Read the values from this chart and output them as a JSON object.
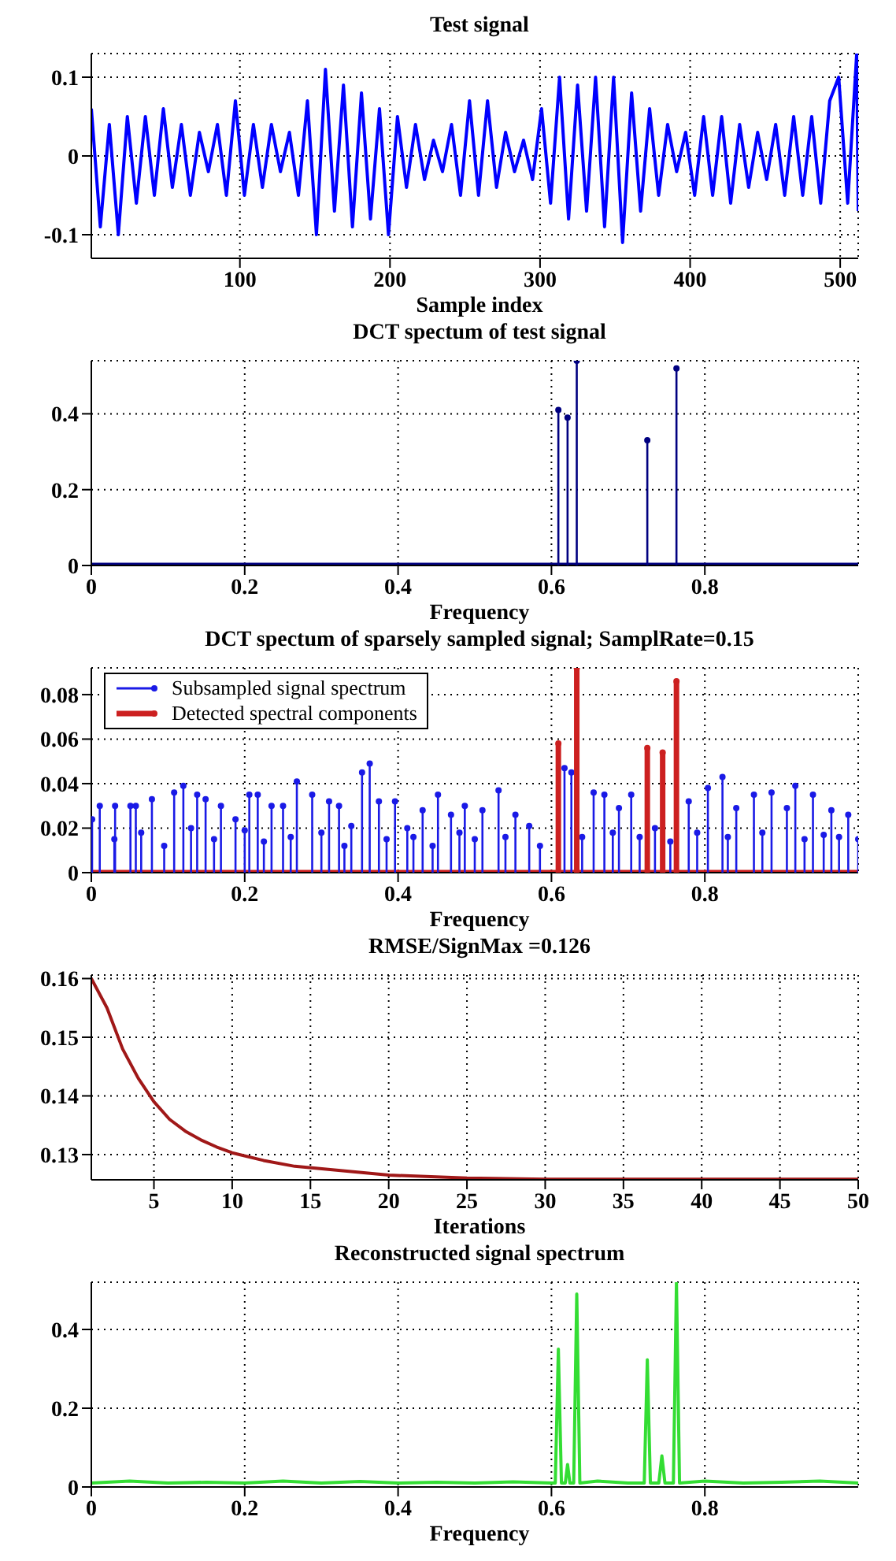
{
  "chart_data": [
    {
      "type": "line",
      "title": "Test signal",
      "xlabel": "Sample index",
      "color": "#0000ff",
      "xlim": [
        1,
        512
      ],
      "xticks": [
        100,
        200,
        300,
        400,
        500
      ],
      "ylim": [
        -0.13,
        0.13
      ],
      "yticks": [
        -0.1,
        0,
        0.1
      ],
      "grid": true,
      "x": [
        1,
        7,
        13,
        19,
        25,
        31,
        37,
        43,
        49,
        55,
        61,
        67,
        73,
        79,
        85,
        91,
        97,
        103,
        109,
        115,
        121,
        127,
        133,
        139,
        145,
        151,
        157,
        163,
        169,
        175,
        181,
        187,
        193,
        199,
        205,
        211,
        217,
        223,
        229,
        235,
        241,
        247,
        253,
        259,
        265,
        271,
        277,
        283,
        289,
        295,
        301,
        307,
        313,
        319,
        325,
        331,
        337,
        343,
        349,
        355,
        361,
        367,
        373,
        379,
        385,
        391,
        397,
        403,
        409,
        415,
        421,
        427,
        433,
        439,
        445,
        451,
        457,
        463,
        469,
        475,
        481,
        487,
        493,
        499,
        505,
        511,
        512
      ],
      "values": [
        0.06,
        -0.09,
        0.04,
        -0.1,
        0.05,
        -0.06,
        0.05,
        -0.05,
        0.06,
        -0.04,
        0.04,
        -0.05,
        0.03,
        -0.02,
        0.04,
        -0.05,
        0.07,
        -0.05,
        0.04,
        -0.04,
        0.04,
        -0.02,
        0.03,
        -0.05,
        0.07,
        -0.1,
        0.11,
        -0.07,
        0.09,
        -0.09,
        0.08,
        -0.08,
        0.06,
        -0.1,
        0.05,
        -0.04,
        0.04,
        -0.03,
        0.02,
        -0.02,
        0.04,
        -0.05,
        0.07,
        -0.05,
        0.07,
        -0.04,
        0.03,
        -0.02,
        0.02,
        -0.03,
        0.06,
        -0.06,
        0.1,
        -0.08,
        0.09,
        -0.07,
        0.1,
        -0.09,
        0.1,
        -0.11,
        0.08,
        -0.07,
        0.06,
        -0.05,
        0.04,
        -0.02,
        0.03,
        -0.05,
        0.05,
        -0.05,
        0.05,
        -0.06,
        0.04,
        -0.04,
        0.03,
        -0.03,
        0.04,
        -0.05,
        0.05,
        -0.05,
        0.05,
        -0.06,
        0.07,
        0.1,
        -0.06,
        0.13,
        -0.07
      ]
    },
    {
      "type": "lollipop",
      "title": "DCT spectum of test signal",
      "xlabel": "Frequency",
      "xlim": [
        0,
        1
      ],
      "xticks": [
        0,
        0.2,
        0.4,
        0.6,
        0.8
      ],
      "ylim": [
        0,
        0.54
      ],
      "yticks": [
        0,
        0.2,
        0.4
      ],
      "grid": true,
      "marker": "circle",
      "series": [
        {
          "color": "#000080",
          "x": [
            0.609,
            0.621,
            0.633,
            0.725,
            0.763
          ],
          "values": [
            0.41,
            0.39,
            0.54,
            0.33,
            0.52
          ]
        },
        {
          "type": "line",
          "marker": "none",
          "color": "#000080",
          "x": [
            0,
            1
          ],
          "values": [
            0,
            0
          ]
        }
      ]
    },
    {
      "type": "lollipop",
      "title": "DCT spectum of sparsely sampled signal; SamplRate=0.15",
      "xlabel": "Frequency",
      "xlim": [
        0,
        1
      ],
      "xticks": [
        0,
        0.2,
        0.4,
        0.6,
        0.8
      ],
      "ylim": [
        0,
        0.092
      ],
      "yticks": [
        0,
        0.02,
        0.04,
        0.06,
        0.08
      ],
      "grid": true,
      "marker": "circle",
      "legend": "top left",
      "series": [
        {
          "name": "Subsampled signal spectrum",
          "color": "#1a1ae6",
          "x": [
            0.001,
            0.011,
            0.03,
            0.031,
            0.051,
            0.058,
            0.065,
            0.079,
            0.095,
            0.108,
            0.12,
            0.13,
            0.138,
            0.149,
            0.16,
            0.169,
            0.188,
            0.2,
            0.206,
            0.217,
            0.225,
            0.235,
            0.25,
            0.26,
            0.268,
            0.288,
            0.3,
            0.31,
            0.323,
            0.33,
            0.339,
            0.353,
            0.363,
            0.375,
            0.385,
            0.396,
            0.412,
            0.42,
            0.432,
            0.445,
            0.452,
            0.469,
            0.48,
            0.487,
            0.5,
            0.51,
            0.531,
            0.54,
            0.553,
            0.571,
            0.585,
            0.617,
            0.626,
            0.64,
            0.655,
            0.669,
            0.68,
            0.688,
            0.704,
            0.715,
            0.735,
            0.755,
            0.779,
            0.79,
            0.804,
            0.823,
            0.83,
            0.841,
            0.864,
            0.875,
            0.887,
            0.907,
            0.918,
            0.93,
            0.941,
            0.955,
            0.965,
            0.975,
            0.987,
            1.0
          ],
          "values": [
            0.024,
            0.03,
            0.015,
            0.03,
            0.03,
            0.03,
            0.018,
            0.033,
            0.012,
            0.036,
            0.039,
            0.02,
            0.035,
            0.033,
            0.015,
            0.03,
            0.024,
            0.019,
            0.035,
            0.035,
            0.014,
            0.03,
            0.03,
            0.016,
            0.041,
            0.035,
            0.018,
            0.032,
            0.03,
            0.012,
            0.021,
            0.045,
            0.049,
            0.032,
            0.015,
            0.032,
            0.02,
            0.016,
            0.028,
            0.012,
            0.035,
            0.026,
            0.018,
            0.03,
            0.015,
            0.028,
            0.037,
            0.016,
            0.026,
            0.021,
            0.012,
            0.047,
            0.045,
            0.016,
            0.036,
            0.035,
            0.018,
            0.029,
            0.035,
            0.016,
            0.02,
            0.014,
            0.032,
            0.018,
            0.038,
            0.043,
            0.016,
            0.029,
            0.035,
            0.018,
            0.036,
            0.029,
            0.039,
            0.015,
            0.035,
            0.017,
            0.028,
            0.016,
            0.026,
            0.015
          ]
        },
        {
          "name": "Detected spectral components",
          "color": "#cc2020",
          "x": [
            0.609,
            0.633,
            0.725,
            0.745,
            0.763
          ],
          "values": [
            0.058,
            0.092,
            0.056,
            0.054,
            0.086
          ]
        },
        {
          "type": "line",
          "marker": "none",
          "color": "#cc2020",
          "x": [
            0,
            1
          ],
          "values": [
            0,
            0
          ]
        }
      ]
    },
    {
      "type": "line",
      "title": "RMSE/SignMax =0.126",
      "xlabel": "Iterations",
      "color": "#a01818",
      "xlim": [
        1,
        50
      ],
      "xticks": [
        5,
        10,
        15,
        20,
        25,
        30,
        35,
        40,
        45,
        50
      ],
      "ylim": [
        0.1257,
        0.1606
      ],
      "yticks": [
        0.13,
        0.14,
        0.15,
        0.16
      ],
      "grid": true,
      "x": [
        1,
        2,
        3,
        4,
        5,
        6,
        7,
        8,
        9,
        10,
        12,
        14,
        16,
        18,
        20,
        25,
        30,
        35,
        40,
        45,
        50
      ],
      "values": [
        0.16,
        0.155,
        0.148,
        0.143,
        0.139,
        0.136,
        0.134,
        0.1325,
        0.1313,
        0.1303,
        0.129,
        0.128,
        0.1275,
        0.127,
        0.1265,
        0.126,
        0.1258,
        0.1258,
        0.1258,
        0.1258,
        0.1258
      ]
    },
    {
      "type": "line",
      "title": "Reconstructed signal spectrum",
      "xlabel": "Frequency",
      "color": "#33dd33",
      "xlim": [
        0,
        1
      ],
      "xticks": [
        0,
        0.2,
        0.4,
        0.6,
        0.8
      ],
      "ylim": [
        0,
        0.52
      ],
      "yticks": [
        0,
        0.2,
        0.4
      ],
      "grid": true,
      "x": [
        0,
        0.05,
        0.1,
        0.15,
        0.2,
        0.25,
        0.3,
        0.35,
        0.4,
        0.45,
        0.5,
        0.55,
        0.6,
        0.605,
        0.609,
        0.613,
        0.618,
        0.621,
        0.624,
        0.629,
        0.633,
        0.637,
        0.66,
        0.7,
        0.721,
        0.725,
        0.729,
        0.74,
        0.744,
        0.748,
        0.759,
        0.763,
        0.767,
        0.8,
        0.85,
        0.9,
        0.95,
        1.0
      ],
      "values": [
        0.01,
        0.015,
        0.01,
        0.012,
        0.01,
        0.015,
        0.01,
        0.014,
        0.01,
        0.012,
        0.01,
        0.013,
        0.01,
        0.01,
        0.35,
        0.01,
        0.01,
        0.057,
        0.01,
        0.01,
        0.49,
        0.01,
        0.015,
        0.01,
        0.01,
        0.323,
        0.01,
        0.01,
        0.079,
        0.01,
        0.01,
        0.52,
        0.01,
        0.015,
        0.01,
        0.012,
        0.015,
        0.01
      ]
    }
  ]
}
